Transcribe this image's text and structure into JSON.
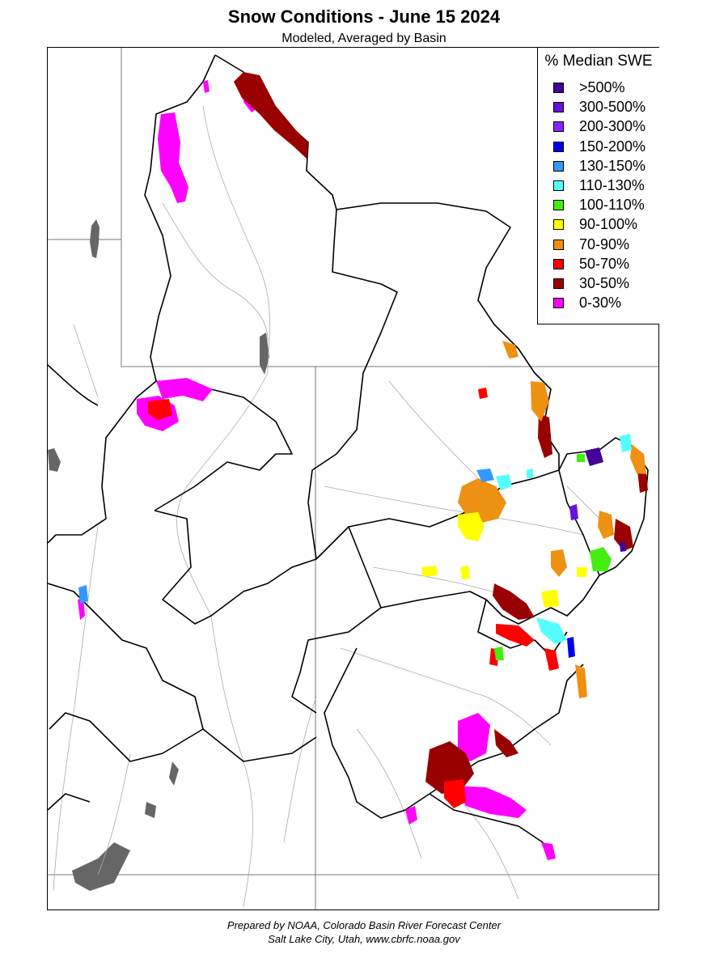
{
  "title": "Snow Conditions - June 15 2024",
  "subtitle": "Modeled, Averaged by Basin",
  "legend": {
    "title": "% Median SWE",
    "items": [
      {
        "label": ">500%",
        "color": "#440099"
      },
      {
        "label": "300-500%",
        "color": "#6611dd"
      },
      {
        "label": "200-300%",
        "color": "#8822ff"
      },
      {
        "label": "150-200%",
        "color": "#0000ee"
      },
      {
        "label": "130-150%",
        "color": "#3399ff"
      },
      {
        "label": "110-130%",
        "color": "#55ffff"
      },
      {
        "label": "100-110%",
        "color": "#44ee11"
      },
      {
        "label": "90-100%",
        "color": "#ffff00"
      },
      {
        "label": "70-90%",
        "color": "#ee9011"
      },
      {
        "label": "50-70%",
        "color": "#ff0000"
      },
      {
        "label": "30-50%",
        "color": "#990000"
      },
      {
        "label": "0-30%",
        "color": "#ff00ff"
      }
    ]
  },
  "footer": {
    "line1": "Prepared by NOAA, Colorado Basin River Forecast Center",
    "line2": "Salt Lake City, Utah, www.cbrfc.noaa.gov"
  }
}
